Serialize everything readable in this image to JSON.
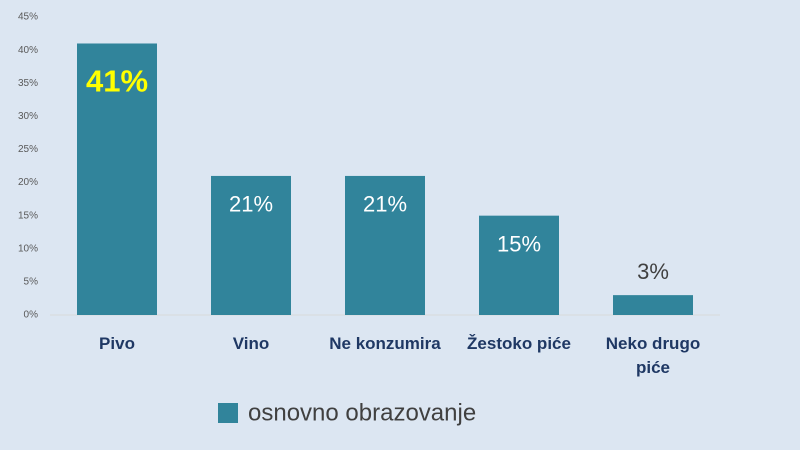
{
  "chart_data": {
    "type": "bar",
    "categories": [
      "Pivo",
      "Vino",
      "Ne konzumira",
      "Žestoko piće",
      "Neko drugo piće"
    ],
    "series": [
      {
        "name": "osnovno obrazovanje",
        "color": "#31849b",
        "values": [
          41,
          21,
          21,
          15,
          3
        ],
        "value_labels": [
          "41%",
          "21%",
          "21%",
          "15%",
          "3%"
        ]
      }
    ],
    "ylim": [
      0,
      45
    ],
    "yticks": [
      {
        "value": 0,
        "label": "0%"
      },
      {
        "value": 5,
        "label": "5%"
      },
      {
        "value": 10,
        "label": "10%"
      },
      {
        "value": 15,
        "label": "15%"
      },
      {
        "value": 20,
        "label": "20%"
      },
      {
        "value": 25,
        "label": "25%"
      },
      {
        "value": 30,
        "label": "30%"
      },
      {
        "value": 35,
        "label": "35%"
      },
      {
        "value": 40,
        "label": "40%"
      },
      {
        "value": 45,
        "label": "45%"
      }
    ],
    "legend": "bottom"
  }
}
